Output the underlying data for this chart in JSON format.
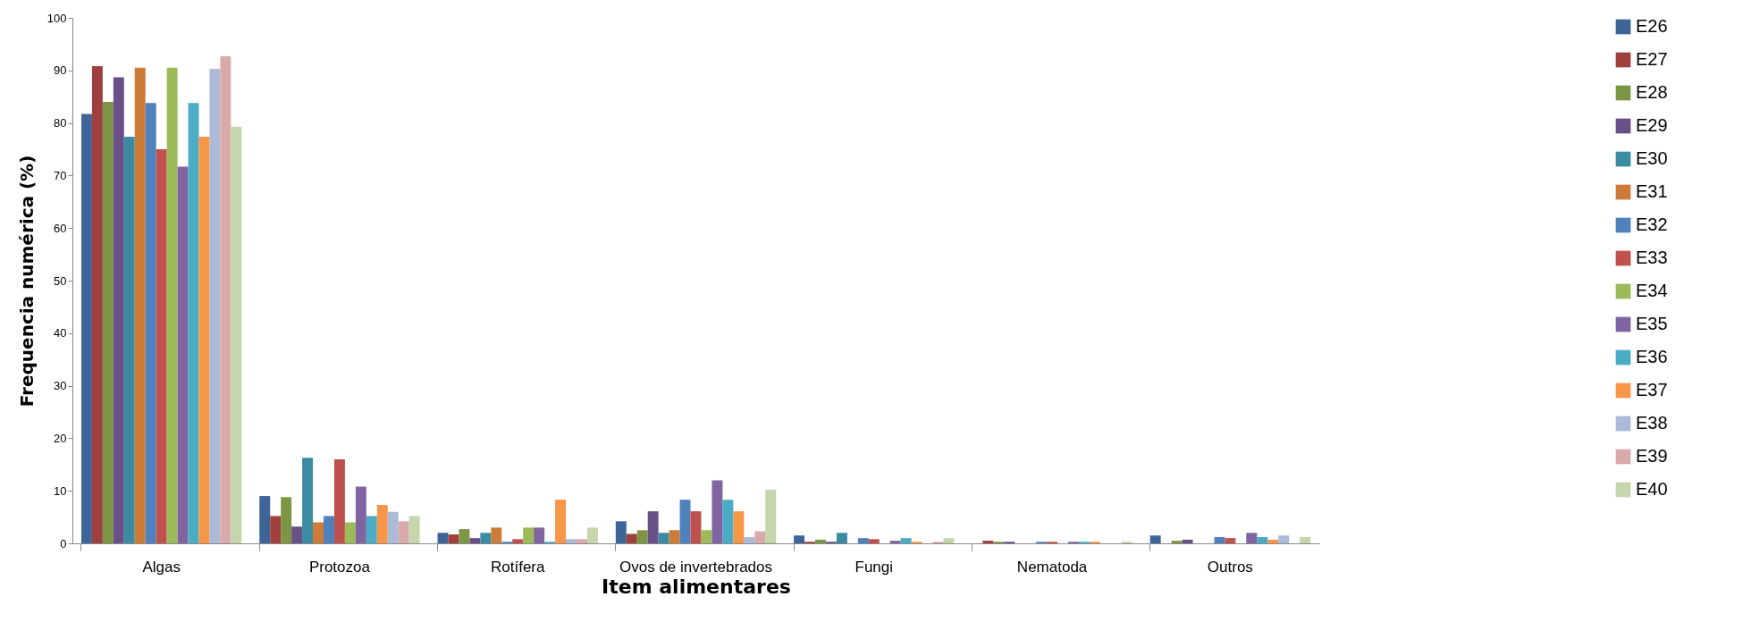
{
  "chart_data": {
    "type": "bar",
    "xlabel": "Item alimentares",
    "ylabel": "Frequencia numérica (%)",
    "categories": [
      "Algas",
      "Protozoa",
      "Rotífera",
      "Ovos de invertebrados",
      "Fungi",
      "Nematoda",
      "Outros"
    ],
    "ylim": [
      0,
      100
    ],
    "yticks": [
      0,
      10,
      20,
      30,
      40,
      50,
      60,
      70,
      80,
      90,
      100
    ],
    "grid": false,
    "legend": "right",
    "series": [
      {
        "name": "E26",
        "color": "#3d6597",
        "values": [
          81.7,
          9,
          2,
          4.2,
          1.5,
          0,
          1.5
        ]
      },
      {
        "name": "E27",
        "color": "#a0403e",
        "values": [
          90.8,
          5.2,
          1.7,
          1.8,
          0.3,
          0.5,
          0
        ]
      },
      {
        "name": "E28",
        "color": "#7d9645",
        "values": [
          84,
          8.8,
          2.7,
          2.5,
          0.7,
          0.3,
          0.5
        ]
      },
      {
        "name": "E29",
        "color": "#6a5088",
        "values": [
          88.7,
          3.2,
          1,
          6.1,
          0.3,
          0.3,
          0.7
        ]
      },
      {
        "name": "E30",
        "color": "#3b8ca2",
        "values": [
          77.4,
          16.3,
          2,
          2,
          2,
          0,
          0
        ]
      },
      {
        "name": "E31",
        "color": "#cd7b37",
        "values": [
          90.5,
          4,
          3,
          2.5,
          0,
          0,
          0
        ]
      },
      {
        "name": "E32",
        "color": "#4f81bd",
        "values": [
          83.8,
          5.2,
          0.3,
          8.3,
          1,
          0.3,
          1.2
        ]
      },
      {
        "name": "E33",
        "color": "#c0504d",
        "values": [
          75,
          16,
          0.8,
          6.1,
          0.8,
          0.3,
          1
        ]
      },
      {
        "name": "E34",
        "color": "#9bbb59",
        "values": [
          90.5,
          4,
          3,
          2.5,
          0,
          0,
          0
        ]
      },
      {
        "name": "E35",
        "color": "#8064a2",
        "values": [
          71.7,
          10.8,
          3,
          12,
          0.5,
          0.3,
          2
        ]
      },
      {
        "name": "E36",
        "color": "#4bacc6",
        "values": [
          83.8,
          5.2,
          0.3,
          8.3,
          1,
          0.3,
          1.2
        ]
      },
      {
        "name": "E37",
        "color": "#f79646",
        "values": [
          77.4,
          7.3,
          8.3,
          6.1,
          0.3,
          0.3,
          0.7
        ]
      },
      {
        "name": "E38",
        "color": "#aabad7",
        "values": [
          90.3,
          6,
          0.8,
          1.2,
          0,
          0,
          1.5
        ]
      },
      {
        "name": "E39",
        "color": "#d9aaa9",
        "values": [
          92.7,
          4.2,
          0.8,
          2.3,
          0.3,
          0,
          0
        ]
      },
      {
        "name": "E40",
        "color": "#c6d6ac",
        "values": [
          79.3,
          5.2,
          3,
          10.2,
          1,
          0.3,
          1.2
        ]
      }
    ]
  }
}
